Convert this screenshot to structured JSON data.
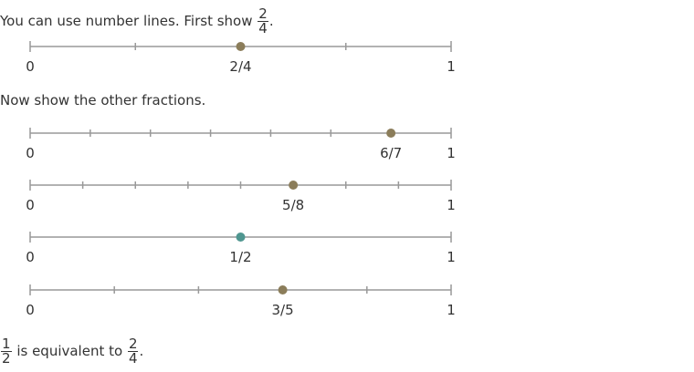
{
  "intro": {
    "text": "You can use number lines. First show",
    "fraction": {
      "num": "2",
      "den": "4"
    },
    "end": "."
  },
  "prompt": {
    "text": "Now show the other fractions."
  },
  "number_lines": [
    {
      "id": "line-fourths",
      "divisions": 4,
      "point": 2,
      "start_label": "0",
      "end_label": "1",
      "point_label": "2/4",
      "dot_color": "#8b7d5a"
    },
    {
      "id": "line-sevenths",
      "divisions": 7,
      "point": 6,
      "start_label": "0",
      "end_label": "1",
      "point_label": "6/7",
      "dot_color": "#8b7d5a"
    },
    {
      "id": "line-eighths",
      "divisions": 8,
      "point": 5,
      "start_label": "0",
      "end_label": "1",
      "point_label": "5/8",
      "dot_color": "#8b7d5a"
    },
    {
      "id": "line-halves",
      "divisions": 2,
      "point": 1,
      "start_label": "0",
      "end_label": "1",
      "point_label": "1/2",
      "dot_color": "#4f9690"
    },
    {
      "id": "line-fifths",
      "divisions": 5,
      "point": 3,
      "start_label": "0",
      "end_label": "1",
      "point_label": "3/5",
      "dot_color": "#8b7d5a"
    }
  ],
  "conclusion": {
    "fraction_a": {
      "num": "1",
      "den": "2"
    },
    "text": " is equivalent to ",
    "fraction_b": {
      "num": "2",
      "den": "4"
    },
    "end": "."
  },
  "colors": {
    "line": "#999999",
    "text": "#333333"
  }
}
